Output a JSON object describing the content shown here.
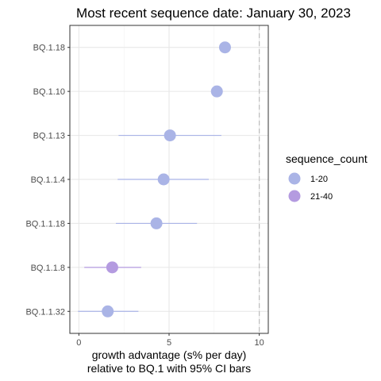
{
  "chart_data": {
    "type": "scatter",
    "title": "Most recent sequence date: January 30, 2023",
    "xlabel_line1": "growth advantage (s% per day)",
    "xlabel_line2": "relative to  BQ.1  with 95% CI bars",
    "ylabel": "",
    "xlim": [
      -0.5,
      10.5
    ],
    "xticks": [
      0,
      5,
      10
    ],
    "grid": true,
    "reference_line_x": 10,
    "legend": {
      "title": "sequence_count",
      "position": "right",
      "entries": [
        {
          "label": "1-20",
          "color": "#aab4e6"
        },
        {
          "label": "21-40",
          "color": "#b49be0"
        }
      ]
    },
    "categories": [
      "BQ.1.18",
      "BQ.1.10",
      "BQ.1.13",
      "BQ.1.1.4",
      "BQ.1.1.18",
      "BQ.1.1.8",
      "BQ.1.1.32"
    ],
    "points": [
      {
        "label": "BQ.1.18",
        "x": 8.1,
        "ci": null,
        "group": "1-20"
      },
      {
        "label": "BQ.1.10",
        "x": 7.65,
        "ci": null,
        "group": "1-20"
      },
      {
        "label": "BQ.1.13",
        "x": 5.05,
        "ci": [
          2.2,
          7.9
        ],
        "group": "1-20"
      },
      {
        "label": "BQ.1.1.4",
        "x": 4.7,
        "ci": [
          2.15,
          7.2
        ],
        "group": "1-20"
      },
      {
        "label": "BQ.1.1.18",
        "x": 4.3,
        "ci": [
          2.05,
          6.55
        ],
        "group": "1-20"
      },
      {
        "label": "BQ.1.1.8",
        "x": 1.85,
        "ci": [
          0.3,
          3.45
        ],
        "group": "21-40"
      },
      {
        "label": "BQ.1.1.32",
        "x": 1.6,
        "ci": [
          -0.05,
          3.3
        ],
        "group": "1-20"
      }
    ]
  }
}
